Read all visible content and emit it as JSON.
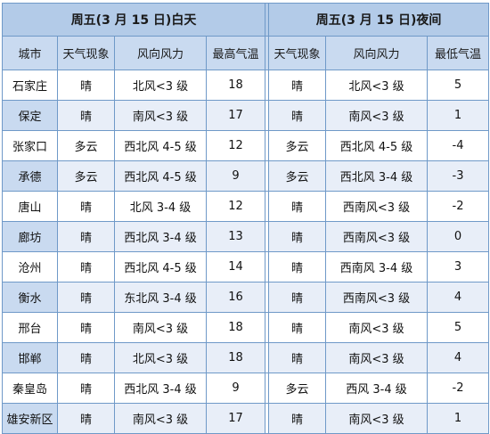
{
  "headers": {
    "day_band": "周五(3 月 15 日)白天",
    "night_band": "周五(3 月 15 日)夜间",
    "columns": [
      "城市",
      "天气现象",
      "风向风力",
      "最高气温",
      "天气现象",
      "风向风力",
      "最低气温"
    ]
  },
  "rows": [
    {
      "city": "石家庄",
      "day_weather": "晴",
      "day_wind": "北风<3 级",
      "high": "18",
      "night_weather": "晴",
      "night_wind": "北风<3 级",
      "low": "5"
    },
    {
      "city": "保定",
      "day_weather": "晴",
      "day_wind": "南风<3 级",
      "high": "17",
      "night_weather": "晴",
      "night_wind": "南风<3 级",
      "low": "1"
    },
    {
      "city": "张家口",
      "day_weather": "多云",
      "day_wind": "西北风 4-5 级",
      "high": "12",
      "night_weather": "多云",
      "night_wind": "西北风 4-5 级",
      "low": "-4"
    },
    {
      "city": "承德",
      "day_weather": "多云",
      "day_wind": "西北风 4-5 级",
      "high": "9",
      "night_weather": "多云",
      "night_wind": "西北风 3-4 级",
      "low": "-3"
    },
    {
      "city": "唐山",
      "day_weather": "晴",
      "day_wind": "北风 3-4 级",
      "high": "12",
      "night_weather": "晴",
      "night_wind": "西南风<3 级",
      "low": "-2"
    },
    {
      "city": "廊坊",
      "day_weather": "晴",
      "day_wind": "西北风 3-4 级",
      "high": "13",
      "night_weather": "晴",
      "night_wind": "西南风<3 级",
      "low": "0"
    },
    {
      "city": "沧州",
      "day_weather": "晴",
      "day_wind": "西北风 4-5 级",
      "high": "14",
      "night_weather": "晴",
      "night_wind": "西南风 3-4 级",
      "low": "3"
    },
    {
      "city": "衡水",
      "day_weather": "晴",
      "day_wind": "东北风 3-4 级",
      "high": "16",
      "night_weather": "晴",
      "night_wind": "西南风<3 级",
      "low": "4"
    },
    {
      "city": "邢台",
      "day_weather": "晴",
      "day_wind": "南风<3 级",
      "high": "18",
      "night_weather": "晴",
      "night_wind": "南风<3 级",
      "low": "5"
    },
    {
      "city": "邯郸",
      "day_weather": "晴",
      "day_wind": "北风<3 级",
      "high": "18",
      "night_weather": "晴",
      "night_wind": "南风<3 级",
      "low": "4"
    },
    {
      "city": "秦皇岛",
      "day_weather": "晴",
      "day_wind": "西北风 3-4 级",
      "high": "9",
      "night_weather": "多云",
      "night_wind": "西风 3-4 级",
      "low": "-2"
    },
    {
      "city": "雄安新区",
      "day_weather": "晴",
      "day_wind": "南风<3 级",
      "high": "17",
      "night_weather": "晴",
      "night_wind": "南风<3 级",
      "low": "1"
    }
  ]
}
